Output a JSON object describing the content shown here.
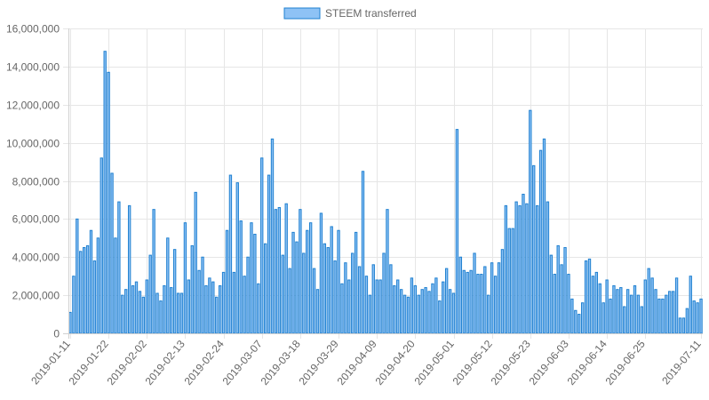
{
  "chart_data": {
    "type": "bar",
    "title": "",
    "xlabel": "",
    "ylabel": "",
    "ylim": [
      0,
      16000000
    ],
    "yticks": [
      "0",
      "2,000,000",
      "4,000,000",
      "6,000,000",
      "8,000,000",
      "10,000,000",
      "12,000,000",
      "14,000,000",
      "16,000,000"
    ],
    "xtick_labels": [
      "2019-01-11",
      "2019-01-22",
      "2019-02-02",
      "2019-02-13",
      "2019-02-24",
      "2019-03-07",
      "2019-03-18",
      "2019-03-29",
      "2019-04-09",
      "2019-04-20",
      "2019-05-01",
      "2019-05-12",
      "2019-05-23",
      "2019-06-03",
      "2019-06-14",
      "2019-06-25",
      "2019-07-11"
    ],
    "grid": true,
    "legend_position": "top-center",
    "categories": [
      "2019-01-11",
      "2019-01-12",
      "2019-01-13",
      "2019-01-14",
      "2019-01-15",
      "2019-01-16",
      "2019-01-17",
      "2019-01-18",
      "2019-01-19",
      "2019-01-20",
      "2019-01-21",
      "2019-01-22",
      "2019-01-23",
      "2019-01-24",
      "2019-01-25",
      "2019-01-26",
      "2019-01-27",
      "2019-01-28",
      "2019-01-29",
      "2019-01-30",
      "2019-01-31",
      "2019-02-01",
      "2019-02-02",
      "2019-02-03",
      "2019-02-04",
      "2019-02-05",
      "2019-02-06",
      "2019-02-07",
      "2019-02-08",
      "2019-02-09",
      "2019-02-10",
      "2019-02-11",
      "2019-02-12",
      "2019-02-13",
      "2019-02-14",
      "2019-02-15",
      "2019-02-16",
      "2019-02-17",
      "2019-02-18",
      "2019-02-19",
      "2019-02-20",
      "2019-02-21",
      "2019-02-22",
      "2019-02-23",
      "2019-02-24",
      "2019-02-25",
      "2019-02-26",
      "2019-02-27",
      "2019-02-28",
      "2019-03-01",
      "2019-03-02",
      "2019-03-03",
      "2019-03-04",
      "2019-03-05",
      "2019-03-06",
      "2019-03-07",
      "2019-03-08",
      "2019-03-09",
      "2019-03-10",
      "2019-03-11",
      "2019-03-12",
      "2019-03-13",
      "2019-03-14",
      "2019-03-15",
      "2019-03-16",
      "2019-03-17",
      "2019-03-18",
      "2019-03-19",
      "2019-03-20",
      "2019-03-21",
      "2019-03-22",
      "2019-03-23",
      "2019-03-24",
      "2019-03-25",
      "2019-03-26",
      "2019-03-27",
      "2019-03-28",
      "2019-03-29",
      "2019-03-30",
      "2019-03-31",
      "2019-04-01",
      "2019-04-02",
      "2019-04-03",
      "2019-04-04",
      "2019-04-05",
      "2019-04-06",
      "2019-04-07",
      "2019-04-08",
      "2019-04-09",
      "2019-04-10",
      "2019-04-11",
      "2019-04-12",
      "2019-04-13",
      "2019-04-14",
      "2019-04-15",
      "2019-04-16",
      "2019-04-17",
      "2019-04-18",
      "2019-04-19",
      "2019-04-20",
      "2019-04-21",
      "2019-04-22",
      "2019-04-23",
      "2019-04-24",
      "2019-04-25",
      "2019-04-26",
      "2019-04-27",
      "2019-04-28",
      "2019-04-29",
      "2019-04-30",
      "2019-05-01",
      "2019-05-02",
      "2019-05-03",
      "2019-05-04",
      "2019-05-05",
      "2019-05-06",
      "2019-05-07",
      "2019-05-08",
      "2019-05-09",
      "2019-05-10",
      "2019-05-11",
      "2019-05-12",
      "2019-05-13",
      "2019-05-14",
      "2019-05-15",
      "2019-05-16",
      "2019-05-17",
      "2019-05-18",
      "2019-05-19",
      "2019-05-20",
      "2019-05-21",
      "2019-05-22",
      "2019-05-23",
      "2019-05-24",
      "2019-05-25",
      "2019-05-26",
      "2019-05-27",
      "2019-05-28",
      "2019-05-29",
      "2019-05-30",
      "2019-05-31",
      "2019-06-01",
      "2019-06-02",
      "2019-06-03",
      "2019-06-04",
      "2019-06-05",
      "2019-06-06",
      "2019-06-07",
      "2019-06-08",
      "2019-06-09",
      "2019-06-10",
      "2019-06-11",
      "2019-06-12",
      "2019-06-13",
      "2019-06-14",
      "2019-06-15",
      "2019-06-16",
      "2019-06-17",
      "2019-06-18",
      "2019-06-19",
      "2019-06-20",
      "2019-06-21",
      "2019-06-22",
      "2019-06-23",
      "2019-06-24",
      "2019-06-25",
      "2019-06-26",
      "2019-06-27",
      "2019-06-28",
      "2019-06-29",
      "2019-06-30",
      "2019-07-01",
      "2019-07-02",
      "2019-07-03",
      "2019-07-04",
      "2019-07-05",
      "2019-07-06",
      "2019-07-07",
      "2019-07-08",
      "2019-07-09",
      "2019-07-10",
      "2019-07-11"
    ],
    "series": [
      {
        "name": "STEEM transferred",
        "fill_color": "#8ec2f5",
        "border_color": "#1f80d0",
        "values": [
          1100000,
          3000000,
          6000000,
          4300000,
          4500000,
          4600000,
          5400000,
          3800000,
          5000000,
          9200000,
          14800000,
          13700000,
          8400000,
          5000000,
          6900000,
          2000000,
          2300000,
          6700000,
          2500000,
          2700000,
          2200000,
          1900000,
          2800000,
          4100000,
          6500000,
          2100000,
          1700000,
          2500000,
          5000000,
          2400000,
          4400000,
          2100000,
          2100000,
          5800000,
          2800000,
          4600000,
          7400000,
          3300000,
          4000000,
          2500000,
          2900000,
          2700000,
          1900000,
          2500000,
          3200000,
          5400000,
          8300000,
          3200000,
          7900000,
          5900000,
          3000000,
          4000000,
          5800000,
          5200000,
          2600000,
          9200000,
          4700000,
          8300000,
          10200000,
          6500000,
          6600000,
          4100000,
          6800000,
          3400000,
          5300000,
          4800000,
          6500000,
          4200000,
          5400000,
          5800000,
          3400000,
          2300000,
          6300000,
          4700000,
          4500000,
          5600000,
          3800000,
          5400000,
          2600000,
          3700000,
          2800000,
          4200000,
          5300000,
          3500000,
          8500000,
          3000000,
          2000000,
          3600000,
          2800000,
          2800000,
          4200000,
          6500000,
          3600000,
          2500000,
          2800000,
          2300000,
          2000000,
          1900000,
          2900000,
          2500000,
          2000000,
          2300000,
          2400000,
          2200000,
          2600000,
          2900000,
          1700000,
          2700000,
          3400000,
          2300000,
          2100000,
          10700000,
          4000000,
          3300000,
          3200000,
          3300000,
          4200000,
          3100000,
          3100000,
          3500000,
          2000000,
          3700000,
          3000000,
          3700000,
          4400000,
          6700000,
          5500000,
          5500000,
          6900000,
          6700000,
          7300000,
          6800000,
          11700000,
          8800000,
          6700000,
          9600000,
          10200000,
          6900000,
          4100000,
          3100000,
          4600000,
          3600000,
          4500000,
          3100000,
          1800000,
          1200000,
          1000000,
          1600000,
          3800000,
          3900000,
          3000000,
          3200000,
          2600000,
          1600000,
          2800000,
          1800000,
          2500000,
          2300000,
          2400000,
          1400000,
          2300000,
          2000000,
          2500000,
          2000000,
          1400000,
          2800000,
          3400000,
          2900000,
          2300000,
          1800000,
          1800000,
          2000000,
          2200000,
          2200000,
          2900000,
          800000,
          800000,
          1300000,
          3000000,
          1700000,
          1600000,
          1800000
        ]
      }
    ]
  }
}
